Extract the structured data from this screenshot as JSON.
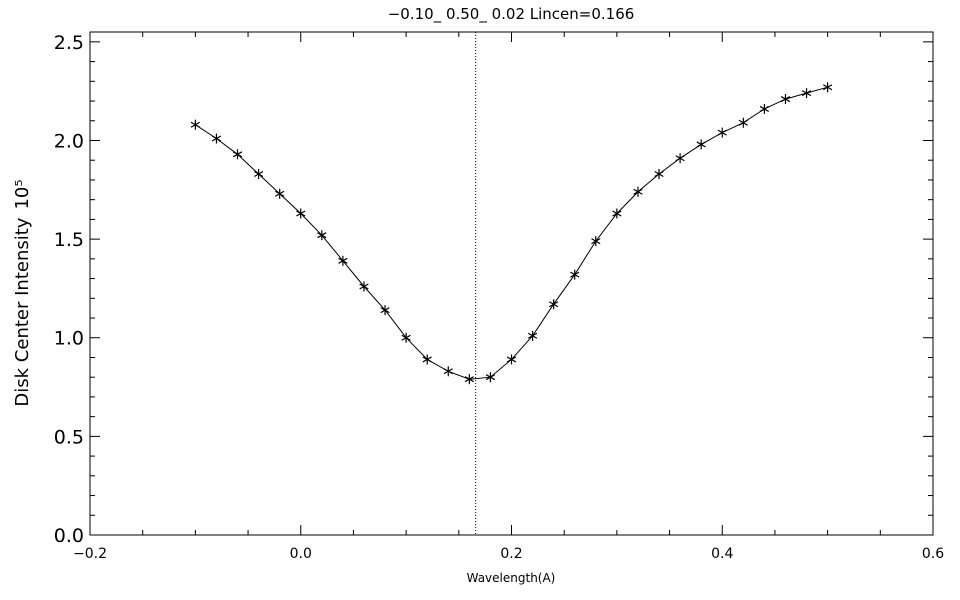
{
  "chart_data": {
    "type": "line",
    "title": "−0.10_ 0.50_ 0.02   Lincen=0.166",
    "xlabel": "Wavelength(A)",
    "ylabel": "Disk Center Intensity",
    "ylabel_exponent": "10⁵",
    "xlim": [
      -0.2,
      0.6
    ],
    "ylim": [
      0.0,
      2.55
    ],
    "x_ticks": [
      -0.2,
      0.0,
      0.2,
      0.4,
      0.6
    ],
    "x_tick_labels": [
      "−0.2",
      "0.0",
      "0.2",
      "0.4",
      "0.6"
    ],
    "y_ticks": [
      0.0,
      0.5,
      1.0,
      1.5,
      2.0,
      2.5
    ],
    "y_tick_labels": [
      "0.0",
      "0.5",
      "1.0",
      "1.5",
      "2.0",
      "2.5"
    ],
    "marker": "asterisk",
    "grid": false,
    "vline": 0.166,
    "x": [
      -0.1,
      -0.08,
      -0.06,
      -0.04,
      -0.02,
      0.0,
      0.02,
      0.04,
      0.06,
      0.08,
      0.1,
      0.12,
      0.14,
      0.16,
      0.18,
      0.2,
      0.22,
      0.24,
      0.26,
      0.28,
      0.3,
      0.32,
      0.34,
      0.36,
      0.38,
      0.4,
      0.42,
      0.44,
      0.46,
      0.48,
      0.5
    ],
    "y": [
      2.08,
      2.01,
      1.93,
      1.83,
      1.73,
      1.63,
      1.52,
      1.39,
      1.26,
      1.14,
      1.0,
      0.89,
      0.83,
      0.79,
      0.8,
      0.89,
      1.01,
      1.17,
      1.32,
      1.49,
      1.63,
      1.74,
      1.83,
      1.91,
      1.98,
      2.04,
      2.09,
      2.16,
      2.21,
      2.24,
      2.27
    ]
  }
}
